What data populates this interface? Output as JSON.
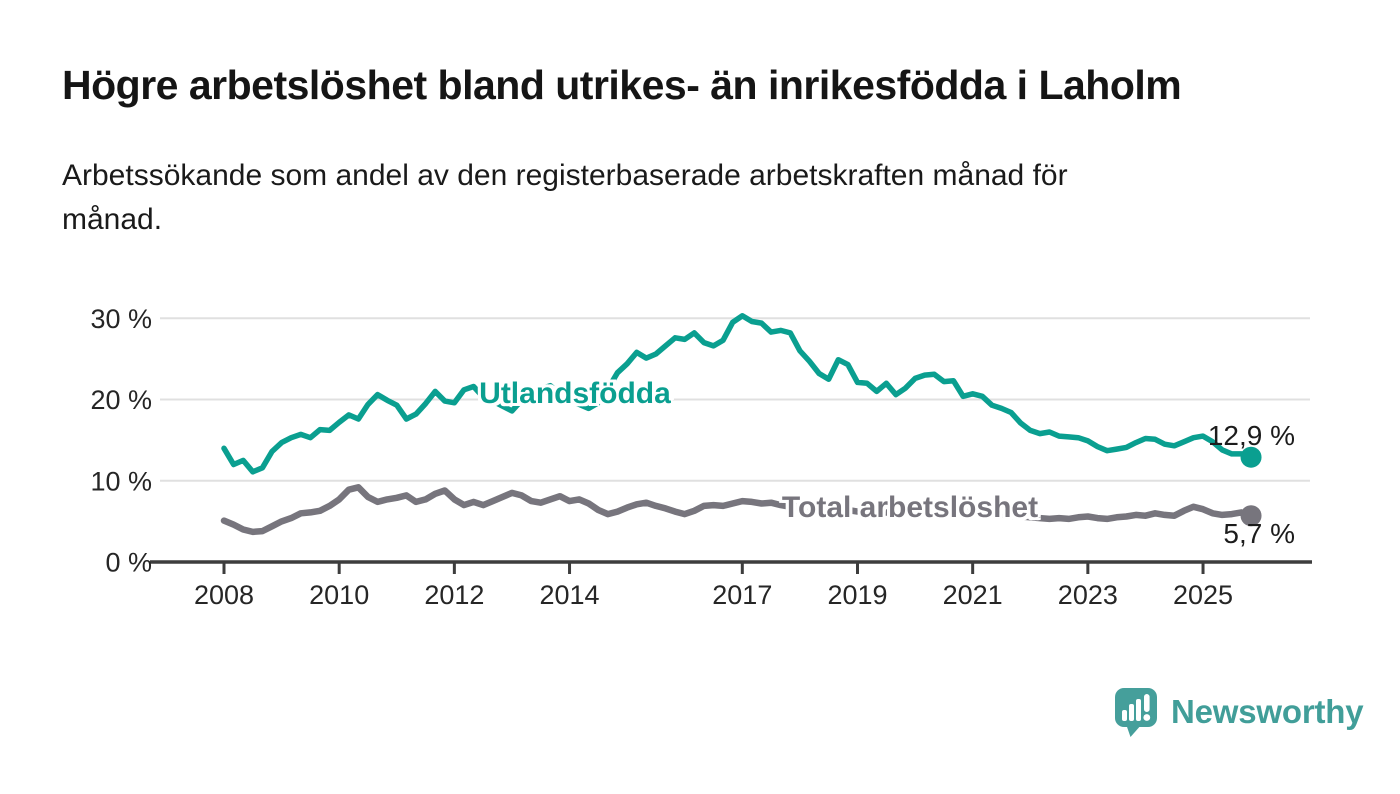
{
  "header": {
    "title": "Högre arbetslöshet bland utrikes- än inrikesfödda i Laholm",
    "subtitle": "Arbetssökande som andel av den registerbaserade arbetskraften månad för\nmånad."
  },
  "chart_data": {
    "type": "line",
    "title": "Högre arbetslöshet bland utrikes- än inrikesfödda i Laholm",
    "subtitle": "Arbetssökande som andel av den registerbaserade arbetskraften månad för månad.",
    "unit": "%",
    "grid": true,
    "legend": "inline-labels-on-lines",
    "ylim": [
      0,
      32
    ],
    "yticks": [
      0,
      10,
      20,
      30
    ],
    "ytick_suffix": " %",
    "xticks": [
      2008,
      2010,
      2012,
      2014,
      2017,
      2019,
      2021,
      2023,
      2025
    ],
    "x_start": 2008.0,
    "x_step_years": 0.16667,
    "colors": {
      "utlandsfodda": "#0a9f90",
      "total": "#77757d",
      "grid": "#e0e0e0",
      "axis": "#3d3d3d"
    },
    "series": [
      {
        "name": "Utlandsfödda",
        "color": "#0a9f90",
        "end_label": "12,9 %",
        "end_value": 12.9,
        "values": [
          14.0,
          12.0,
          12.5,
          11.1,
          11.6,
          13.6,
          14.7,
          15.3,
          15.7,
          15.3,
          16.3,
          16.2,
          17.2,
          18.1,
          17.6,
          19.4,
          20.6,
          19.9,
          19.3,
          17.6,
          18.2,
          19.5,
          21.0,
          19.8,
          19.6,
          21.2,
          21.6,
          20.3,
          19.8,
          19.2,
          18.6,
          19.9,
          20.6,
          21.3,
          21.7,
          20.6,
          19.9,
          19.4,
          18.9,
          19.6,
          21.3,
          23.3,
          24.4,
          25.8,
          25.1,
          25.6,
          26.6,
          27.6,
          27.4,
          28.2,
          27.0,
          26.6,
          27.3,
          29.5,
          30.3,
          29.6,
          29.4,
          28.3,
          28.5,
          28.2,
          26.0,
          24.7,
          23.2,
          22.5,
          24.9,
          24.3,
          22.1,
          22.0,
          21.0,
          22.0,
          20.6,
          21.4,
          22.6,
          23.0,
          23.1,
          22.2,
          22.3,
          20.4,
          20.7,
          20.4,
          19.3,
          18.9,
          18.4,
          17.1,
          16.2,
          15.8,
          16.0,
          15.5,
          15.4,
          15.3,
          14.9,
          14.2,
          13.7,
          13.9,
          14.1,
          14.7,
          15.2,
          15.1,
          14.5,
          14.3,
          14.8,
          15.3,
          15.5,
          14.8,
          13.8,
          13.3,
          13.3,
          12.9
        ]
      },
      {
        "name": "Total arbetslöshet",
        "color": "#77757d",
        "end_label": "5,7 %",
        "end_value": 5.7,
        "values": [
          5.1,
          4.6,
          4.0,
          3.7,
          3.8,
          4.4,
          5.0,
          5.4,
          6.0,
          6.1,
          6.3,
          6.9,
          7.7,
          8.9,
          9.2,
          8.0,
          7.4,
          7.7,
          7.9,
          8.2,
          7.4,
          7.7,
          8.4,
          8.8,
          7.7,
          7.0,
          7.4,
          7.0,
          7.5,
          8.0,
          8.5,
          8.2,
          7.5,
          7.3,
          7.7,
          8.1,
          7.5,
          7.7,
          7.2,
          6.4,
          5.9,
          6.2,
          6.7,
          7.1,
          7.3,
          6.9,
          6.6,
          6.2,
          5.9,
          6.3,
          6.9,
          7.0,
          6.9,
          7.2,
          7.5,
          7.4,
          7.2,
          7.3,
          7.0,
          6.8,
          6.9,
          6.7,
          6.5,
          6.4,
          6.6,
          6.4,
          6.2,
          6.1,
          6.0,
          6.1,
          5.9,
          6.0,
          6.2,
          6.6,
          6.8,
          6.7,
          6.5,
          6.4,
          6.3,
          6.1,
          6.0,
          5.9,
          5.7,
          5.6,
          5.5,
          5.4,
          5.3,
          5.4,
          5.3,
          5.5,
          5.6,
          5.4,
          5.3,
          5.5,
          5.6,
          5.8,
          5.7,
          6.0,
          5.8,
          5.7,
          6.3,
          6.8,
          6.5,
          6.0,
          5.8,
          5.9,
          6.1,
          5.7
        ]
      }
    ]
  },
  "footer": {
    "brand": "Newsworthy"
  }
}
